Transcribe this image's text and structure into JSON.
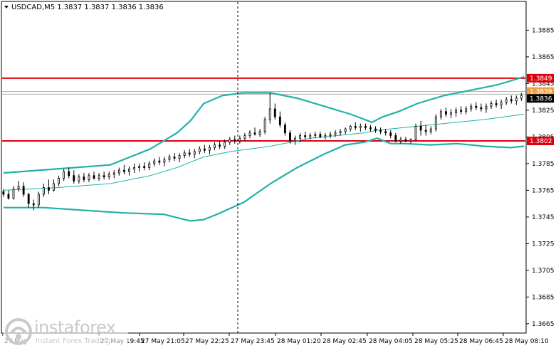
{
  "chart_data": {
    "type": "candlestick",
    "title": "USDCAD,M5  1.3837 1.3837 1.3836 1.3836",
    "symbol": "USDCAD",
    "timeframe": "M5",
    "ohlc_header": "1.3837 1.3837 1.3836 1.3836",
    "ylim": [
      1.3658,
      1.3906
    ],
    "y_ticks": [
      1.3665,
      1.3685,
      1.3705,
      1.3725,
      1.3745,
      1.3765,
      1.3785,
      1.3805,
      1.3825,
      1.3845,
      1.3865,
      1.3885
    ],
    "y_tick_labels": [
      "1.3665",
      "1.3685",
      "1.3705",
      "1.3725",
      "1.3745",
      "1.3765",
      "1.3785",
      "1.3805",
      "1.3825",
      "1.3845",
      "1.3865",
      "1.3885"
    ],
    "x_tick_labels": [
      "27 May",
      "27 May 19:45",
      "27 May 21:05",
      "27 May 22:25",
      "27 May 23:45",
      "28 May 01:20",
      "28 May 02:45",
      "28 May 04:05",
      "28 May 05:25",
      "28 May 06:45",
      "28 May 08:10"
    ],
    "x_tick_index": [
      0,
      30,
      48,
      66,
      84,
      103,
      122,
      140,
      158,
      176,
      194
    ],
    "grid": false,
    "colors": {
      "candle": "#000000",
      "bands": "#20b2aa",
      "resistance": "#e0000c",
      "support": "#e0000c",
      "orange_line": "#f0a040",
      "gray_line": "#b0b0b0",
      "cursor": "#000000"
    },
    "horizontal_lines": [
      {
        "label": "1.3849",
        "value": 1.3849,
        "color": "#e0000c"
      },
      {
        "label": "1.3839",
        "value": 1.3839,
        "color": "#f0a040"
      },
      {
        "label": "1.3837",
        "value": 1.3837,
        "color": "#b0b0b0"
      },
      {
        "label": "1.3802",
        "value": 1.3802,
        "color": "#e0000c"
      }
    ],
    "current_price_label": "1.3836",
    "current_price": 1.3836,
    "cursor_index": 91,
    "series": [
      {
        "name": "",
        "kind": "upper-band",
        "x": [
          0,
          20,
          40,
          55,
          65,
          70,
          75,
          82,
          90,
          100,
          110,
          120,
          130,
          138,
          142,
          148,
          155,
          165,
          175,
          185,
          195
        ],
        "values": [
          1.3778,
          1.3781,
          1.3784,
          1.3796,
          1.3808,
          1.3817,
          1.383,
          1.3836,
          1.3838,
          1.3838,
          1.3834,
          1.3828,
          1.3822,
          1.3816,
          1.382,
          1.3824,
          1.383,
          1.3836,
          1.384,
          1.3844,
          1.385
        ]
      },
      {
        "name": "",
        "kind": "middle-band",
        "x": [
          0,
          20,
          40,
          55,
          65,
          75,
          85,
          100,
          115,
          125,
          135,
          140,
          150,
          165,
          180,
          195
        ],
        "values": [
          1.3765,
          1.3767,
          1.377,
          1.3776,
          1.3782,
          1.379,
          1.3794,
          1.3798,
          1.3804,
          1.3806,
          1.3808,
          1.381,
          1.3812,
          1.3815,
          1.3818,
          1.3822
        ]
      },
      {
        "name": "",
        "kind": "lower-band",
        "x": [
          0,
          15,
          30,
          45,
          60,
          70,
          75,
          80,
          90,
          100,
          110,
          120,
          128,
          135,
          140,
          145,
          150,
          160,
          170,
          180,
          190,
          195
        ],
        "values": [
          1.3752,
          1.3752,
          1.375,
          1.3748,
          1.3747,
          1.3742,
          1.3743,
          1.3747,
          1.3756,
          1.377,
          1.3782,
          1.3792,
          1.3799,
          1.3801,
          1.3804,
          1.38,
          1.38,
          1.3799,
          1.38,
          1.3798,
          1.3797,
          1.3798
        ]
      }
    ],
    "candles": [
      [
        1.3764,
        1.3766,
        1.376,
        1.3762
      ],
      [
        1.3762,
        1.3765,
        1.3758,
        1.3759
      ],
      [
        1.3759,
        1.3768,
        1.3758,
        1.3766
      ],
      [
        1.3766,
        1.3772,
        1.3764,
        1.3768
      ],
      [
        1.3768,
        1.3771,
        1.376,
        1.3762
      ],
      [
        1.3762,
        1.3763,
        1.3752,
        1.3755
      ],
      [
        1.3755,
        1.3758,
        1.375,
        1.3754
      ],
      [
        1.3754,
        1.3764,
        1.3752,
        1.3762
      ],
      [
        1.3762,
        1.377,
        1.376,
        1.3767
      ],
      [
        1.3767,
        1.3773,
        1.3762,
        1.3765
      ],
      [
        1.3765,
        1.3773,
        1.3764,
        1.377
      ],
      [
        1.377,
        1.3776,
        1.3768,
        1.3774
      ],
      [
        1.3774,
        1.3781,
        1.3772,
        1.3779
      ],
      [
        1.3779,
        1.3782,
        1.3774,
        1.3776
      ],
      [
        1.3776,
        1.378,
        1.377,
        1.3772
      ],
      [
        1.3772,
        1.3777,
        1.377,
        1.3775
      ],
      [
        1.3775,
        1.3778,
        1.3771,
        1.3773
      ],
      [
        1.3773,
        1.3778,
        1.3771,
        1.3776
      ],
      [
        1.3776,
        1.3779,
        1.3773,
        1.3774
      ],
      [
        1.3774,
        1.3778,
        1.3772,
        1.3776
      ],
      [
        1.3776,
        1.3779,
        1.3773,
        1.3775
      ],
      [
        1.3775,
        1.3779,
        1.3773,
        1.3777
      ],
      [
        1.3777,
        1.378,
        1.3774,
        1.3778
      ],
      [
        1.3778,
        1.3782,
        1.3776,
        1.378
      ],
      [
        1.378,
        1.3784,
        1.3777,
        1.3779
      ],
      [
        1.3779,
        1.3783,
        1.3776,
        1.3781
      ],
      [
        1.3781,
        1.3785,
        1.3778,
        1.3782
      ],
      [
        1.3782,
        1.3785,
        1.3779,
        1.3783
      ],
      [
        1.3783,
        1.3786,
        1.378,
        1.3782
      ],
      [
        1.3782,
        1.3787,
        1.378,
        1.3785
      ],
      [
        1.3785,
        1.3789,
        1.3783,
        1.3787
      ],
      [
        1.3787,
        1.379,
        1.3784,
        1.3786
      ],
      [
        1.3786,
        1.379,
        1.3783,
        1.3788
      ],
      [
        1.3788,
        1.3792,
        1.3786,
        1.379
      ],
      [
        1.379,
        1.3793,
        1.3787,
        1.3789
      ],
      [
        1.3789,
        1.3793,
        1.3786,
        1.3791
      ],
      [
        1.3791,
        1.3795,
        1.3789,
        1.3793
      ],
      [
        1.3793,
        1.3796,
        1.379,
        1.3792
      ],
      [
        1.3792,
        1.3796,
        1.3789,
        1.3794
      ],
      [
        1.3794,
        1.3798,
        1.3792,
        1.3796
      ],
      [
        1.3796,
        1.3799,
        1.3793,
        1.3795
      ],
      [
        1.3795,
        1.3799,
        1.3792,
        1.3797
      ],
      [
        1.3797,
        1.3801,
        1.3795,
        1.3799
      ],
      [
        1.3799,
        1.3802,
        1.3796,
        1.3798
      ],
      [
        1.3798,
        1.3803,
        1.3796,
        1.3801
      ],
      [
        1.3801,
        1.3805,
        1.3799,
        1.3803
      ],
      [
        1.3803,
        1.3806,
        1.38,
        1.3802
      ],
      [
        1.3802,
        1.3806,
        1.38,
        1.3804
      ],
      [
        1.3804,
        1.3808,
        1.3802,
        1.3806
      ],
      [
        1.3806,
        1.381,
        1.3804,
        1.3808
      ],
      [
        1.3808,
        1.3812,
        1.3806,
        1.3807
      ],
      [
        1.3807,
        1.3811,
        1.3805,
        1.3809
      ],
      [
        1.3809,
        1.382,
        1.3807,
        1.3818
      ],
      [
        1.3818,
        1.3838,
        1.3815,
        1.3826
      ],
      [
        1.3826,
        1.383,
        1.3818,
        1.382
      ],
      [
        1.382,
        1.3824,
        1.3812,
        1.3814
      ],
      [
        1.3814,
        1.3816,
        1.3806,
        1.3808
      ],
      [
        1.3808,
        1.381,
        1.38,
        1.3802
      ],
      [
        1.3802,
        1.3806,
        1.3799,
        1.3804
      ],
      [
        1.3804,
        1.3808,
        1.3801,
        1.3806
      ],
      [
        1.3806,
        1.3809,
        1.3803,
        1.3805
      ],
      [
        1.3805,
        1.3808,
        1.3803,
        1.3806
      ],
      [
        1.3806,
        1.3809,
        1.3804,
        1.3807
      ],
      [
        1.3807,
        1.3809,
        1.3804,
        1.3805
      ],
      [
        1.3805,
        1.3808,
        1.3803,
        1.3806
      ],
      [
        1.3806,
        1.3809,
        1.3804,
        1.3807
      ],
      [
        1.3807,
        1.381,
        1.3805,
        1.3808
      ],
      [
        1.3808,
        1.3811,
        1.3806,
        1.3809
      ],
      [
        1.3809,
        1.3812,
        1.3807,
        1.3811
      ],
      [
        1.3811,
        1.3814,
        1.3809,
        1.3813
      ],
      [
        1.3813,
        1.3816,
        1.381,
        1.3812
      ],
      [
        1.3812,
        1.3815,
        1.3809,
        1.3813
      ],
      [
        1.3813,
        1.3815,
        1.381,
        1.3812
      ],
      [
        1.3812,
        1.3814,
        1.3809,
        1.3811
      ],
      [
        1.3811,
        1.3813,
        1.3808,
        1.381
      ],
      [
        1.381,
        1.3812,
        1.3807,
        1.3809
      ],
      [
        1.3809,
        1.3811,
        1.3806,
        1.3808
      ],
      [
        1.3808,
        1.381,
        1.3804,
        1.3806
      ],
      [
        1.3806,
        1.3808,
        1.3801,
        1.3802
      ],
      [
        1.3802,
        1.3805,
        1.38,
        1.3803
      ],
      [
        1.3803,
        1.3805,
        1.3801,
        1.3802
      ],
      [
        1.3802,
        1.3804,
        1.38,
        1.3803
      ],
      [
        1.3803,
        1.3815,
        1.3802,
        1.3813
      ],
      [
        1.3813,
        1.3817,
        1.3806,
        1.381
      ],
      [
        1.381,
        1.3814,
        1.3806,
        1.3809
      ],
      [
        1.3809,
        1.3813,
        1.3807,
        1.3811
      ],
      [
        1.3811,
        1.3822,
        1.3809,
        1.382
      ],
      [
        1.382,
        1.3826,
        1.3818,
        1.3824
      ],
      [
        1.3824,
        1.3827,
        1.382,
        1.3822
      ],
      [
        1.3822,
        1.3826,
        1.3819,
        1.3823
      ],
      [
        1.3823,
        1.3827,
        1.382,
        1.3825
      ],
      [
        1.3825,
        1.3828,
        1.3822,
        1.3824
      ],
      [
        1.3824,
        1.3828,
        1.3822,
        1.3826
      ],
      [
        1.3826,
        1.383,
        1.3824,
        1.3828
      ],
      [
        1.3828,
        1.3831,
        1.3825,
        1.3827
      ],
      [
        1.3827,
        1.383,
        1.3824,
        1.3826
      ],
      [
        1.3826,
        1.383,
        1.3823,
        1.3828
      ],
      [
        1.3828,
        1.3832,
        1.3826,
        1.383
      ],
      [
        1.383,
        1.3833,
        1.3827,
        1.3829
      ],
      [
        1.3829,
        1.3833,
        1.3826,
        1.3831
      ],
      [
        1.3831,
        1.3835,
        1.3829,
        1.3833
      ],
      [
        1.3833,
        1.3836,
        1.383,
        1.3832
      ],
      [
        1.3832,
        1.3836,
        1.3829,
        1.3834
      ],
      [
        1.3834,
        1.3838,
        1.3832,
        1.3836
      ]
    ]
  },
  "watermark": {
    "brand": "instaforex",
    "tagline": "Instant Forex Trading"
  }
}
